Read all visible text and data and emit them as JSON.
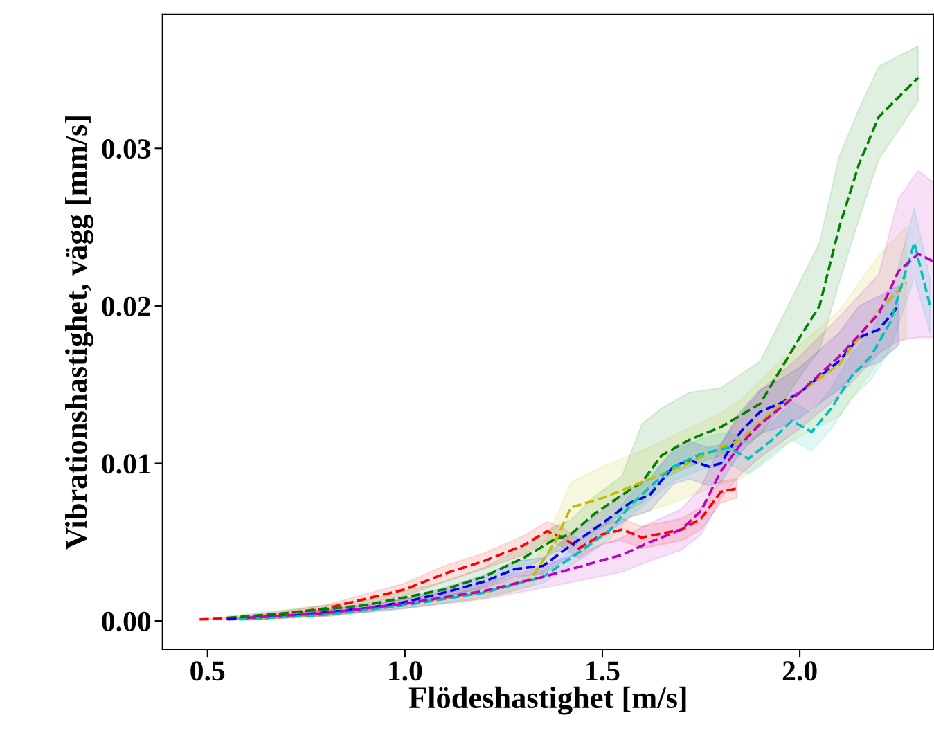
{
  "chart_data": {
    "type": "line",
    "xlabel": "Flödeshastighet [m/s]",
    "ylabel": "Vibrationshastighet, vägg [mm/s]",
    "line_style": "dashed",
    "marker": "none",
    "grid": false,
    "xlim": [
      0.386,
      2.34
    ],
    "ylim": [
      -0.0018,
      0.0385
    ],
    "xticks": [
      {
        "value": 0.5,
        "label": "0.5"
      },
      {
        "value": 1.0,
        "label": "1.0"
      },
      {
        "value": 1.5,
        "label": "1.5"
      },
      {
        "value": 2.0,
        "label": "2.0"
      }
    ],
    "yticks": [
      {
        "value": 0,
        "label": "0.00"
      },
      {
        "value": 0.01,
        "label": "0.01"
      },
      {
        "value": 0.02,
        "label": "0.02"
      },
      {
        "value": 0.03,
        "label": "0.03"
      }
    ],
    "series": [
      {
        "color": "#ff0000",
        "x": [
          0.48,
          0.6,
          0.8,
          1.0,
          1.1,
          1.2,
          1.3,
          1.36,
          1.4,
          1.44,
          1.5,
          1.55,
          1.6,
          1.7,
          1.75,
          1.8,
          1.84
        ],
        "values": [
          0.0001,
          0.0002,
          0.0008,
          0.002,
          0.003,
          0.0038,
          0.0048,
          0.0057,
          0.0053,
          0.0046,
          0.0055,
          0.0058,
          0.0053,
          0.0058,
          0.0065,
          0.0082,
          0.0084
        ],
        "lower": [
          0.0001,
          0.0001,
          0.0006,
          0.0016,
          0.0025,
          0.0033,
          0.0042,
          0.0051,
          0.0047,
          0.004,
          0.0049,
          0.0051,
          0.0046,
          0.0051,
          0.0058,
          0.0075,
          0.0078
        ],
        "upper": [
          0.0001,
          0.0003,
          0.001,
          0.0024,
          0.0035,
          0.0043,
          0.0054,
          0.0063,
          0.0059,
          0.0052,
          0.0061,
          0.0065,
          0.006,
          0.0065,
          0.0072,
          0.0089,
          0.009
        ]
      },
      {
        "color": "#008000",
        "x": [
          0.55,
          0.7,
          0.9,
          1.0,
          1.1,
          1.2,
          1.3,
          1.38,
          1.42,
          1.48,
          1.55,
          1.6,
          1.65,
          1.72,
          1.8,
          1.9,
          2.0,
          2.05,
          2.1,
          2.15,
          2.2,
          2.3
        ],
        "values": [
          0.0002,
          0.0005,
          0.001,
          0.0015,
          0.002,
          0.0028,
          0.004,
          0.0052,
          0.0055,
          0.0068,
          0.008,
          0.0088,
          0.0105,
          0.0115,
          0.0123,
          0.0138,
          0.018,
          0.02,
          0.025,
          0.029,
          0.032,
          0.0345
        ],
        "lower": [
          0.0001,
          0.0003,
          0.0007,
          0.0011,
          0.0015,
          0.0022,
          0.0033,
          0.0044,
          0.0046,
          0.0057,
          0.0068,
          0.0075,
          0.009,
          0.0098,
          0.0105,
          0.0118,
          0.0155,
          0.0172,
          0.0215,
          0.0255,
          0.0293,
          0.033
        ],
        "upper": [
          0.0003,
          0.0007,
          0.0013,
          0.0019,
          0.0025,
          0.0034,
          0.0047,
          0.006,
          0.0064,
          0.0079,
          0.0092,
          0.0125,
          0.0135,
          0.0145,
          0.0148,
          0.0165,
          0.0215,
          0.024,
          0.0295,
          0.0325,
          0.0352,
          0.0365
        ]
      },
      {
        "color": "#0000ff",
        "x": [
          0.55,
          0.7,
          0.9,
          1.0,
          1.1,
          1.2,
          1.28,
          1.35,
          1.42,
          1.5,
          1.57,
          1.62,
          1.68,
          1.72,
          1.77,
          1.8,
          1.85,
          1.9,
          1.95,
          2.0,
          2.1,
          2.15,
          2.2,
          2.25
        ],
        "values": [
          0.0001,
          0.0003,
          0.0008,
          0.0012,
          0.0018,
          0.0025,
          0.0033,
          0.0035,
          0.0048,
          0.0062,
          0.0075,
          0.008,
          0.0098,
          0.0102,
          0.0098,
          0.01,
          0.012,
          0.0133,
          0.0138,
          0.0145,
          0.0165,
          0.018,
          0.0185,
          0.02
        ],
        "lower": [
          0.0001,
          0.0002,
          0.0006,
          0.001,
          0.0015,
          0.0021,
          0.0028,
          0.003,
          0.0041,
          0.0054,
          0.0066,
          0.007,
          0.0087,
          0.009,
          0.0086,
          0.0088,
          0.0107,
          0.0119,
          0.0123,
          0.0129,
          0.0147,
          0.016,
          0.0164,
          0.0175
        ],
        "upper": [
          0.0002,
          0.0004,
          0.001,
          0.0014,
          0.0021,
          0.0029,
          0.0038,
          0.004,
          0.0055,
          0.007,
          0.0084,
          0.009,
          0.0109,
          0.0114,
          0.011,
          0.0112,
          0.0133,
          0.0147,
          0.0153,
          0.0161,
          0.0183,
          0.02,
          0.0206,
          0.0213
        ]
      },
      {
        "color": "#bfbf00",
        "x": [
          0.6,
          0.8,
          1.0,
          1.2,
          1.32,
          1.38,
          1.42,
          1.5,
          1.6,
          1.7,
          1.8,
          1.85,
          1.95,
          2.0,
          2.1,
          2.2,
          2.27
        ],
        "values": [
          0.0001,
          0.0004,
          0.0011,
          0.0018,
          0.0027,
          0.005,
          0.0072,
          0.0078,
          0.0088,
          0.0098,
          0.011,
          0.0115,
          0.0137,
          0.0145,
          0.0163,
          0.0197,
          0.0215
        ],
        "lower": [
          0.0001,
          0.0003,
          0.0008,
          0.0014,
          0.0022,
          0.0038,
          0.0055,
          0.006,
          0.0068,
          0.0077,
          0.0087,
          0.009,
          0.011,
          0.0117,
          0.013,
          0.0165,
          0.018
        ],
        "upper": [
          0.0002,
          0.0005,
          0.0014,
          0.0022,
          0.0032,
          0.0064,
          0.0088,
          0.0098,
          0.0108,
          0.012,
          0.0132,
          0.014,
          0.0165,
          0.0175,
          0.0197,
          0.0232,
          0.025
        ]
      },
      {
        "color": "#00bfbf",
        "x": [
          0.58,
          0.8,
          1.0,
          1.2,
          1.35,
          1.45,
          1.52,
          1.57,
          1.62,
          1.68,
          1.75,
          1.82,
          1.87,
          1.93,
          1.98,
          2.03,
          2.08,
          2.13,
          2.18,
          2.23,
          2.29,
          2.33
        ],
        "values": [
          0.0001,
          0.0004,
          0.001,
          0.0018,
          0.0028,
          0.0045,
          0.0058,
          0.0073,
          0.0085,
          0.0098,
          0.0106,
          0.011,
          0.0103,
          0.0115,
          0.0127,
          0.012,
          0.0135,
          0.0155,
          0.0168,
          0.019,
          0.024,
          0.02
        ],
        "lower": [
          0.0001,
          0.0003,
          0.0008,
          0.0015,
          0.0024,
          0.004,
          0.0052,
          0.0066,
          0.0077,
          0.0089,
          0.0096,
          0.01,
          0.0093,
          0.0104,
          0.0115,
          0.0108,
          0.0122,
          0.0141,
          0.0153,
          0.0173,
          0.0218,
          0.0183
        ],
        "upper": [
          0.0002,
          0.0005,
          0.0012,
          0.0021,
          0.0032,
          0.005,
          0.0064,
          0.008,
          0.0093,
          0.0107,
          0.0116,
          0.012,
          0.0113,
          0.0126,
          0.0139,
          0.0132,
          0.0148,
          0.0169,
          0.0183,
          0.0207,
          0.0262,
          0.0217
        ]
      },
      {
        "color": "#bf00bf",
        "x": [
          0.6,
          0.8,
          1.0,
          1.2,
          1.35,
          1.45,
          1.55,
          1.62,
          1.7,
          1.75,
          1.8,
          1.85,
          1.9,
          2.0,
          2.1,
          2.2,
          2.25,
          2.3,
          2.34
        ],
        "values": [
          0.0002,
          0.0005,
          0.0011,
          0.0019,
          0.0028,
          0.0035,
          0.0042,
          0.005,
          0.0058,
          0.007,
          0.0095,
          0.0112,
          0.0125,
          0.0145,
          0.0168,
          0.0195,
          0.0222,
          0.0233,
          0.0228
        ],
        "lower": [
          0.0001,
          0.0003,
          0.0008,
          0.0014,
          0.0021,
          0.0026,
          0.0031,
          0.0038,
          0.0045,
          0.0055,
          0.0078,
          0.0093,
          0.0104,
          0.0122,
          0.0143,
          0.017,
          0.0178,
          0.018,
          0.018
        ],
        "upper": [
          0.0003,
          0.0007,
          0.0014,
          0.0024,
          0.0035,
          0.0044,
          0.0053,
          0.0062,
          0.0071,
          0.0085,
          0.0112,
          0.0131,
          0.0146,
          0.0168,
          0.0193,
          0.022,
          0.0268,
          0.0286,
          0.0278
        ]
      }
    ]
  }
}
